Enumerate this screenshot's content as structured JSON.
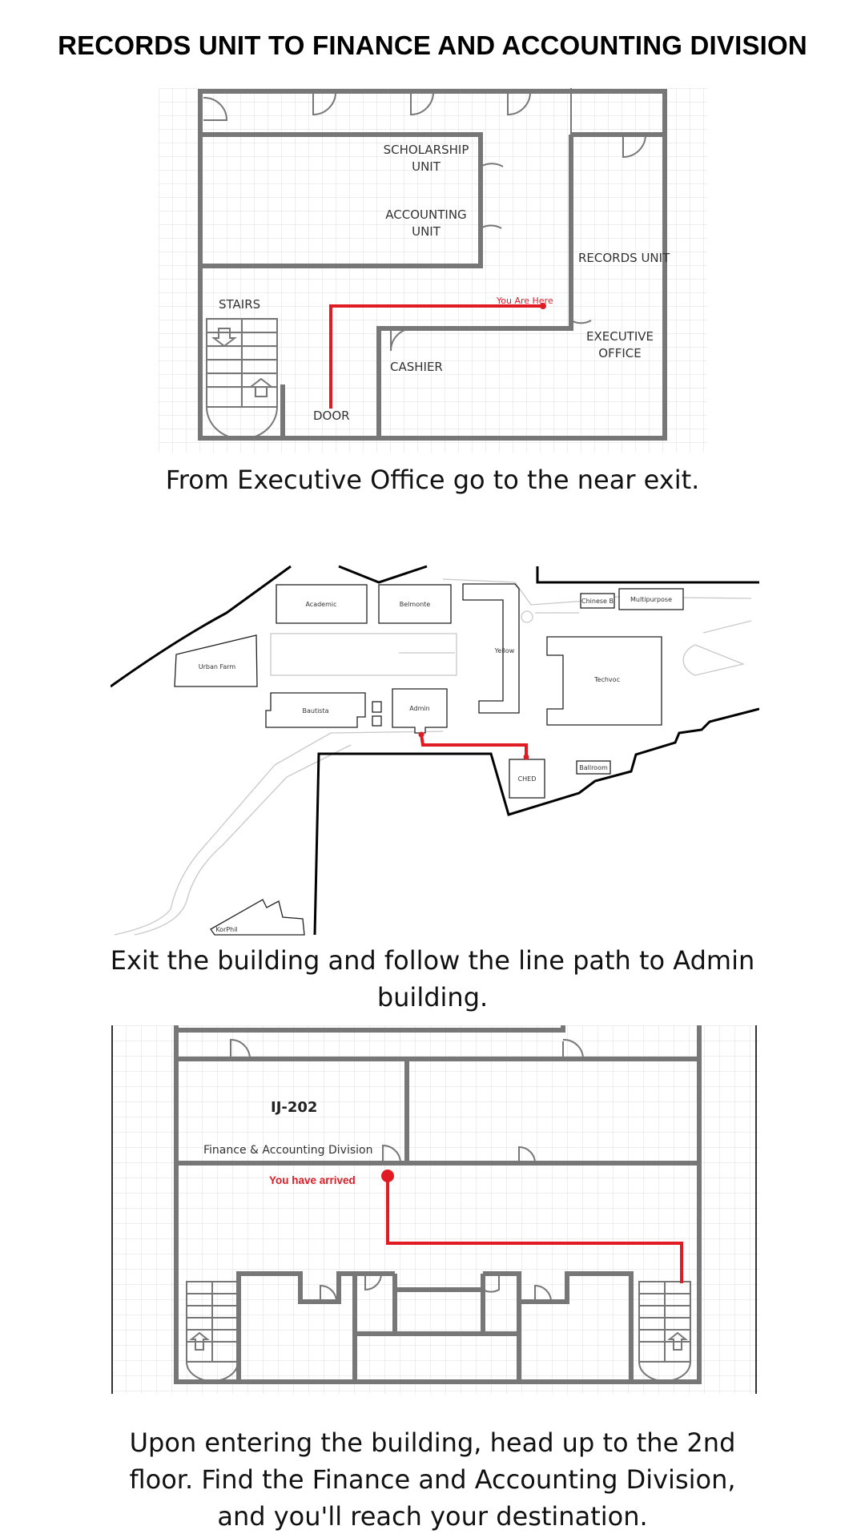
{
  "title": "RECORDS  UNIT TO  FINANCE AND ACCOUNTING DIVISION",
  "colors": {
    "route": "#e01b24",
    "wall": "#777777",
    "grid": "#dcdcdc"
  },
  "step1": {
    "caption": "From Executive Office  go to the near exit.",
    "labels": {
      "scholarship_1": "SCHOLARSHIP",
      "scholarship_2": "UNIT",
      "accounting_1": "ACCOUNTING",
      "accounting_2": "UNIT",
      "records": "RECORDS UNIT",
      "stairs": "STAIRS",
      "you_are_here": "You Are Here",
      "executive_1": "EXECUTIVE",
      "executive_2": "OFFICE",
      "cashier": "CASHIER",
      "door": "DOOR"
    }
  },
  "step2": {
    "caption_1": "Exit the building and follow the line path to Admin",
    "caption_2": "building.",
    "buildings": {
      "academic": "Academic",
      "belmonte": "Belmonte",
      "yellow": "Yellow",
      "chinese": "Chinese B",
      "multipurpose": "Multipurpose",
      "urban_farm": "Urban Farm",
      "techvoc": "Techvoc",
      "bautista": "Bautista",
      "admin": "Admin",
      "ched": "CHED",
      "ballroom": "Ballroom",
      "korphil": "KorPhil"
    }
  },
  "step3": {
    "room": "IJ-202",
    "division": "Finance & Accounting Division",
    "arrived": "You have arrived",
    "caption_1": "Upon entering the building, head up to the 2nd",
    "caption_2": "floor. Find the Finance and Accounting Division,",
    "caption_3": "and you'll reach your destination."
  }
}
